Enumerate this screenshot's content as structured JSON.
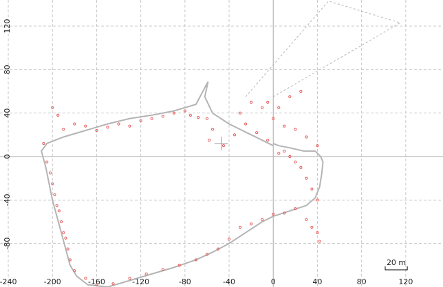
{
  "chart_data": {
    "type": "scatter",
    "xlim": [
      -247.5,
      153.75
    ],
    "ylim": [
      -120,
      144
    ],
    "xticks": [
      -240,
      -200,
      -160,
      -120,
      -80,
      -40,
      0,
      40,
      80,
      120
    ],
    "yticks": [
      -80,
      -40,
      0,
      40,
      80,
      120
    ],
    "grid": true,
    "series": [
      {
        "style": "line",
        "color": "#b4b4b4",
        "x": [
          0,
          -20,
          -40,
          -55,
          -62,
          -59,
          -70,
          -90,
          -110,
          -130,
          -150,
          -170,
          -190,
          -205,
          -210,
          -206,
          -203,
          -200,
          -196,
          -192,
          -188,
          -184,
          -178,
          -168,
          -150,
          -130,
          -110,
          -90,
          -70,
          -55,
          -40,
          -25,
          -10,
          0,
          15,
          30,
          38,
          42,
          44,
          45,
          43,
          38,
          28,
          15,
          5,
          0
        ],
        "y": [
          10,
          20,
          30,
          40,
          55,
          69,
          48,
          42,
          38,
          35,
          30,
          24,
          18,
          12,
          5,
          -10,
          -25,
          -40,
          -55,
          -70,
          -85,
          -100,
          -110,
          -118,
          -120,
          -114,
          -108,
          -102,
          -95,
          -88,
          -80,
          -70,
          -60,
          -55,
          -50,
          -45,
          -38,
          -28,
          -15,
          -5,
          0,
          5,
          5,
          8,
          10,
          12
        ]
      },
      {
        "style": "dashed",
        "color": "#b4b4b4",
        "x": [
          -25,
          50,
          115,
          0
        ],
        "y": [
          55,
          143,
          123,
          55
        ]
      },
      {
        "style": "points",
        "color": "#e85a5a",
        "x": [
          -200,
          -195,
          -190,
          -180,
          -170,
          -160,
          -150,
          -140,
          -130,
          -120,
          -110,
          -100,
          -90,
          -80,
          -75,
          -68,
          -208,
          -205,
          -202,
          -200,
          -198,
          -196,
          -194,
          -192,
          -190,
          -188,
          -186,
          -184,
          -180,
          -170,
          -160,
          -145,
          -130,
          -115,
          -100,
          -85,
          -70,
          -60,
          -50,
          -40,
          -30,
          -20,
          -10,
          0,
          10,
          20,
          30,
          35,
          40,
          42,
          40,
          35,
          30,
          25,
          20,
          15,
          10,
          5,
          -5,
          -15,
          -25,
          -30,
          -20,
          -10,
          0,
          10,
          20,
          30,
          40,
          25,
          15,
          5,
          -5,
          -35,
          -45,
          -55,
          -60,
          -58
        ],
        "y": [
          45,
          38,
          25,
          30,
          28,
          24,
          27,
          30,
          28,
          33,
          35,
          37,
          40,
          42,
          38,
          36,
          12,
          -5,
          -15,
          -25,
          -35,
          -45,
          -50,
          -60,
          -70,
          -75,
          -85,
          -95,
          -105,
          -112,
          -118,
          -117,
          -112,
          -108,
          -104,
          -100,
          -95,
          -90,
          -85,
          -76,
          -65,
          -62,
          -58,
          -53,
          -52,
          -48,
          -58,
          -65,
          -70,
          -78,
          -40,
          -30,
          -20,
          -10,
          -5,
          0,
          5,
          3,
          15,
          22,
          30,
          40,
          50,
          45,
          35,
          28,
          25,
          18,
          10,
          60,
          55,
          45,
          50,
          20,
          10,
          25,
          35,
          15
        ]
      }
    ],
    "marker": {
      "x": -47,
      "y": 12
    },
    "scale_bar": {
      "length": 20,
      "label": "20 m"
    }
  }
}
